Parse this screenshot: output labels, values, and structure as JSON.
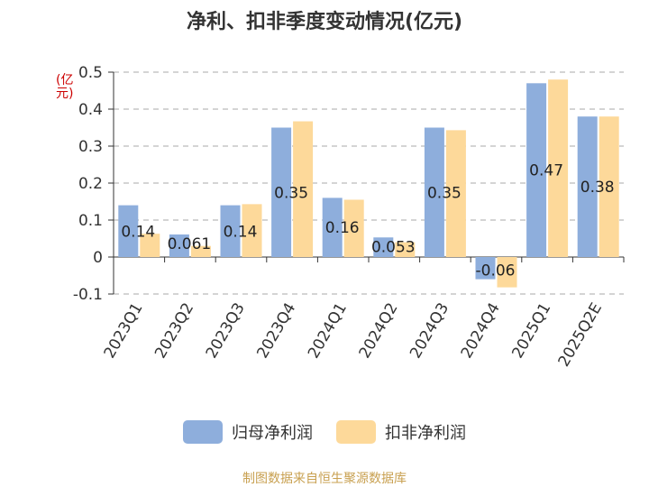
{
  "chart_data": {
    "type": "bar",
    "title": "净利、扣非季度变动情况(亿元)",
    "ylabel": "(亿元)",
    "xlabel": "",
    "categories": [
      "2023Q1",
      "2023Q2",
      "2023Q3",
      "2023Q4",
      "2024Q1",
      "2024Q2",
      "2024Q3",
      "2024Q4",
      "2025Q1",
      "2025Q2E"
    ],
    "series": [
      {
        "name": "归母净利润",
        "color": "#8eaedc",
        "values": [
          0.14,
          0.061,
          0.14,
          0.35,
          0.16,
          0.053,
          0.35,
          -0.06,
          0.47,
          0.38
        ],
        "labels": [
          "0.14",
          "0.061",
          "0.14",
          "0.35",
          "0.16",
          "0.053",
          "0.35",
          "-0.06",
          "0.47",
          "0.38"
        ]
      },
      {
        "name": "扣非净利润",
        "color": "#fdd99a",
        "values": [
          0.063,
          0.03,
          0.143,
          0.367,
          0.155,
          0.04,
          0.343,
          -0.082,
          0.48,
          0.38
        ]
      }
    ],
    "ylim": [
      -0.1,
      0.5
    ],
    "yticks": [
      "-0.1",
      "0",
      "0.1",
      "0.2",
      "0.3",
      "0.4",
      "0.5"
    ],
    "grid": true,
    "legend_position": "bottom"
  },
  "source": "制图数据来自恒生聚源数据库"
}
